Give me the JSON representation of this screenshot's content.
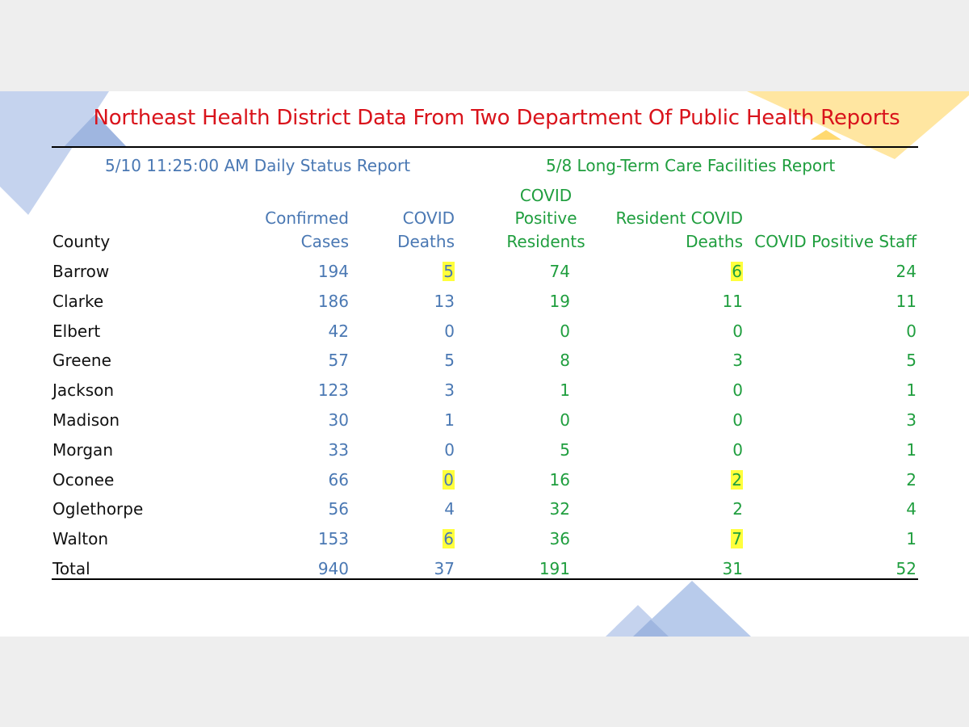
{
  "title": "Northeast Health District Data From Two Department Of Public Health Reports",
  "reports": {
    "daily": "5/10  11:25:00 AM Daily Status Report",
    "ltc": "5/8 Long-Term Care Facilities Report"
  },
  "headers": {
    "county": "County",
    "confirmed": [
      "Confirmed",
      "Cases"
    ],
    "deaths": [
      "COVID",
      "Deaths"
    ],
    "residents": [
      "COVID",
      "Positive",
      "Residents"
    ],
    "resident_deaths": [
      "Resident COVID",
      "Deaths"
    ],
    "staff": "COVID Positive Staff"
  },
  "rows": [
    {
      "county": "Barrow",
      "confirmed": "194",
      "deaths": "5",
      "residents": "74",
      "resident_deaths": "6",
      "staff": "24",
      "hl_deaths": true,
      "hl_resident_deaths": true
    },
    {
      "county": "Clarke",
      "confirmed": "186",
      "deaths": "13",
      "residents": "19",
      "resident_deaths": "11",
      "staff": "11"
    },
    {
      "county": "Elbert",
      "confirmed": "42",
      "deaths": "0",
      "residents": "0",
      "resident_deaths": "0",
      "staff": "0"
    },
    {
      "county": "Greene",
      "confirmed": "57",
      "deaths": "5",
      "residents": "8",
      "resident_deaths": "3",
      "staff": "5"
    },
    {
      "county": "Jackson",
      "confirmed": "123",
      "deaths": "3",
      "residents": "1",
      "resident_deaths": "0",
      "staff": "1"
    },
    {
      "county": "Madison",
      "confirmed": "30",
      "deaths": "1",
      "residents": "0",
      "resident_deaths": "0",
      "staff": "3"
    },
    {
      "county": "Morgan",
      "confirmed": "33",
      "deaths": "0",
      "residents": "5",
      "resident_deaths": "0",
      "staff": "1"
    },
    {
      "county": "Oconee",
      "confirmed": "66",
      "deaths": "0",
      "residents": "16",
      "resident_deaths": "2",
      "staff": "2",
      "hl_deaths": true,
      "hl_resident_deaths": true
    },
    {
      "county": "Oglethorpe",
      "confirmed": "56",
      "deaths": "4",
      "residents": "32",
      "resident_deaths": "2",
      "staff": "4"
    },
    {
      "county": "Walton",
      "confirmed": "153",
      "deaths": "6",
      "residents": "36",
      "resident_deaths": "7",
      "staff": "1",
      "hl_deaths": true,
      "hl_resident_deaths": true
    }
  ],
  "total": {
    "county": "Total",
    "confirmed": "940",
    "deaths": "37",
    "residents": "191",
    "resident_deaths": "31",
    "staff": "52"
  },
  "colors": {
    "title": "#d9131b",
    "daily_report": "#4a78b3",
    "ltc_report": "#1f9e3e",
    "highlight": "#ffff3c",
    "deco_blue": "#b4c7e7",
    "deco_yellow": "#ffe699"
  }
}
